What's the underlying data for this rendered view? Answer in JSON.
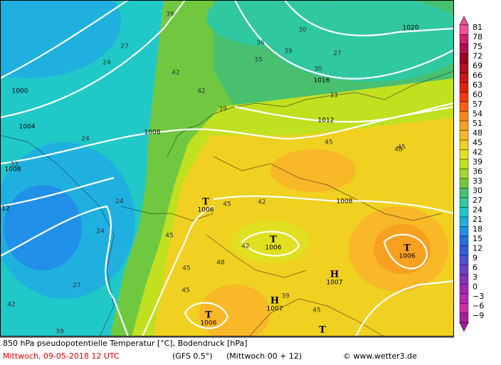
{
  "legend": {
    "steps": [
      {
        "label": "81",
        "color": "#f0509a"
      },
      {
        "label": "78",
        "color": "#d02070"
      },
      {
        "label": "75",
        "color": "#b01050"
      },
      {
        "label": "72",
        "color": "#a00020"
      },
      {
        "label": "69",
        "color": "#b01020"
      },
      {
        "label": "66",
        "color": "#c81818"
      },
      {
        "label": "63",
        "color": "#e02010"
      },
      {
        "label": "60",
        "color": "#f03810"
      },
      {
        "label": "57",
        "color": "#f86010"
      },
      {
        "label": "54",
        "color": "#f88818"
      },
      {
        "label": "51",
        "color": "#f8a020"
      },
      {
        "label": "48",
        "color": "#f8b828"
      },
      {
        "label": "45",
        "color": "#f0d020"
      },
      {
        "label": "42",
        "color": "#e0e020"
      },
      {
        "label": "39",
        "color": "#c0e020"
      },
      {
        "label": "36",
        "color": "#a0d830"
      },
      {
        "label": "33",
        "color": "#70c840"
      },
      {
        "label": "30",
        "color": "#48c070"
      },
      {
        "label": "27",
        "color": "#30c8a0"
      },
      {
        "label": "24",
        "color": "#20c8c8"
      },
      {
        "label": "21",
        "color": "#20b0e0"
      },
      {
        "label": "18",
        "color": "#2090e8"
      },
      {
        "label": "15",
        "color": "#2070e0"
      },
      {
        "label": "12",
        "color": "#3060d8"
      },
      {
        "label": "9",
        "color": "#5050d0"
      },
      {
        "label": "6",
        "color": "#7040c8"
      },
      {
        "label": "3",
        "color": "#8830c0"
      },
      {
        "label": "0",
        "color": "#a028b8"
      },
      {
        "label": "−3",
        "color": "#b828b0"
      },
      {
        "label": "−6",
        "color": "#c830a8"
      },
      {
        "label": "−9",
        "color": "#a020a0"
      }
    ]
  },
  "map_labels": {
    "isobars": [
      "1000",
      "1004",
      "1008",
      "1008",
      "12",
      "1012",
      "1016",
      "1020",
      "1008"
    ],
    "centers": [
      {
        "symbol": "T",
        "value": "1006"
      },
      {
        "symbol": "T",
        "value": "1006"
      },
      {
        "symbol": "T",
        "value": "1006"
      },
      {
        "symbol": "H",
        "value": "1007"
      },
      {
        "symbol": "H",
        "value": "1007"
      },
      {
        "symbol": "T",
        "value": "1006"
      },
      {
        "symbol": "T"
      }
    ],
    "contours": [
      "39",
      "30",
      "27",
      "24",
      "24",
      "42",
      "42",
      "36",
      "35",
      "39",
      "33",
      "30",
      "27",
      "39",
      "45",
      "45",
      "48",
      "45",
      "42",
      "45",
      "45",
      "48",
      "45",
      "42",
      "39",
      "27",
      "24",
      "24",
      "33",
      "42",
      "39",
      "45"
    ]
  },
  "caption": {
    "line1": "850 hPa pseudopotentielle Temperatur [°C], Bodendruck [hPa]",
    "date": "Mittwoch, 09-05-2018  12 UTC",
    "model": "(GFS 0.5°)",
    "run": "(Mittwoch 00 + 12)",
    "copyright": "© www.wetter3.de"
  }
}
